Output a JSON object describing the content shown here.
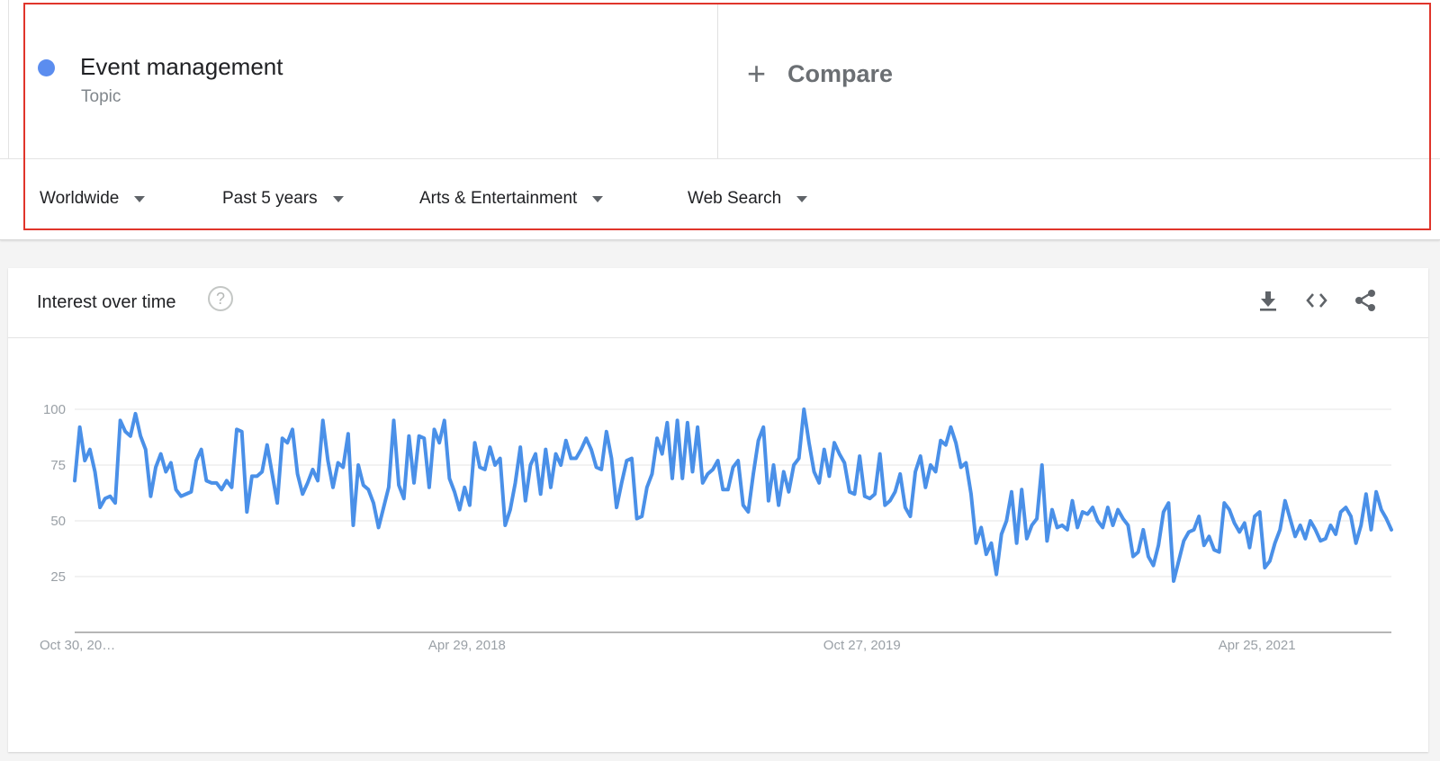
{
  "explore": {
    "term": {
      "title": "Event management",
      "type": "Topic",
      "color": "#5b8def"
    },
    "compare_label": "Compare",
    "filters": {
      "region": "Worldwide",
      "time": "Past 5 years",
      "category": "Arts & Entertainment",
      "property": "Web Search"
    }
  },
  "card": {
    "title": "Interest over time",
    "help_glyph": "?",
    "icons": [
      "download-icon",
      "embed-code-icon",
      "share-icon"
    ]
  },
  "chart_data": {
    "type": "line",
    "ylim": [
      0,
      100
    ],
    "y_ticks": [
      25,
      50,
      75,
      100
    ],
    "y_tick_labels": [
      "25",
      "50",
      "75",
      "100"
    ],
    "x_tick_labels": [
      "Oct 30, 20…",
      "Apr 29, 2018",
      "Oct 27, 2019",
      "Apr 25, 2021"
    ],
    "x_tick_weeks": [
      0,
      78,
      156,
      234
    ],
    "line_color": "#4a90e8",
    "grid": true,
    "series": [
      {
        "values": [
          68,
          92,
          77,
          82,
          72,
          56,
          60,
          61,
          58,
          95,
          90,
          88,
          98,
          88,
          82,
          61,
          74,
          80,
          72,
          76,
          64,
          61,
          62,
          63,
          77,
          82,
          68,
          67,
          67,
          64,
          68,
          65,
          91,
          90,
          54,
          70,
          70,
          72,
          84,
          71,
          58,
          87,
          85,
          91,
          71,
          62,
          67,
          73,
          68,
          95,
          77,
          65,
          76,
          74,
          89,
          48,
          75,
          66,
          64,
          58,
          47,
          56,
          65,
          95,
          66,
          60,
          88,
          67,
          88,
          87,
          65,
          91,
          85,
          95,
          69,
          63,
          55,
          65,
          57,
          85,
          74,
          73,
          83,
          75,
          78,
          48,
          55,
          67,
          83,
          59,
          75,
          80,
          62,
          82,
          65,
          80,
          75,
          86,
          78,
          78,
          82,
          87,
          82,
          74,
          73,
          90,
          78,
          56,
          67,
          77,
          78,
          51,
          52,
          65,
          71,
          87,
          80,
          94,
          69,
          95,
          69,
          94,
          72,
          92,
          67,
          71,
          73,
          77,
          64,
          64,
          74,
          77,
          57,
          54,
          71,
          86,
          92,
          59,
          75,
          57,
          72,
          63,
          75,
          78,
          100,
          85,
          72,
          67,
          82,
          70,
          85,
          80,
          76,
          63,
          62,
          79,
          61,
          60,
          62,
          80,
          57,
          59,
          63,
          71,
          56,
          52,
          72,
          79,
          65,
          75,
          72,
          86,
          84,
          92,
          85,
          74,
          76,
          62,
          40,
          47,
          35,
          40,
          26,
          44,
          50,
          63,
          40,
          64,
          42,
          48,
          51,
          75,
          41,
          55,
          47,
          48,
          46,
          59,
          47,
          54,
          53,
          56,
          50,
          47,
          56,
          48,
          55,
          51,
          48,
          34,
          36,
          46,
          34,
          30,
          39,
          54,
          58,
          23,
          32,
          41,
          45,
          46,
          52,
          39,
          43,
          37,
          36,
          58,
          55,
          49,
          45,
          49,
          38,
          52,
          54,
          29,
          32,
          40,
          46,
          59,
          51,
          43,
          48,
          42,
          50,
          46,
          41,
          42,
          48,
          44,
          54,
          56,
          52,
          40,
          48,
          62,
          46,
          63,
          55,
          51,
          46
        ]
      }
    ]
  }
}
